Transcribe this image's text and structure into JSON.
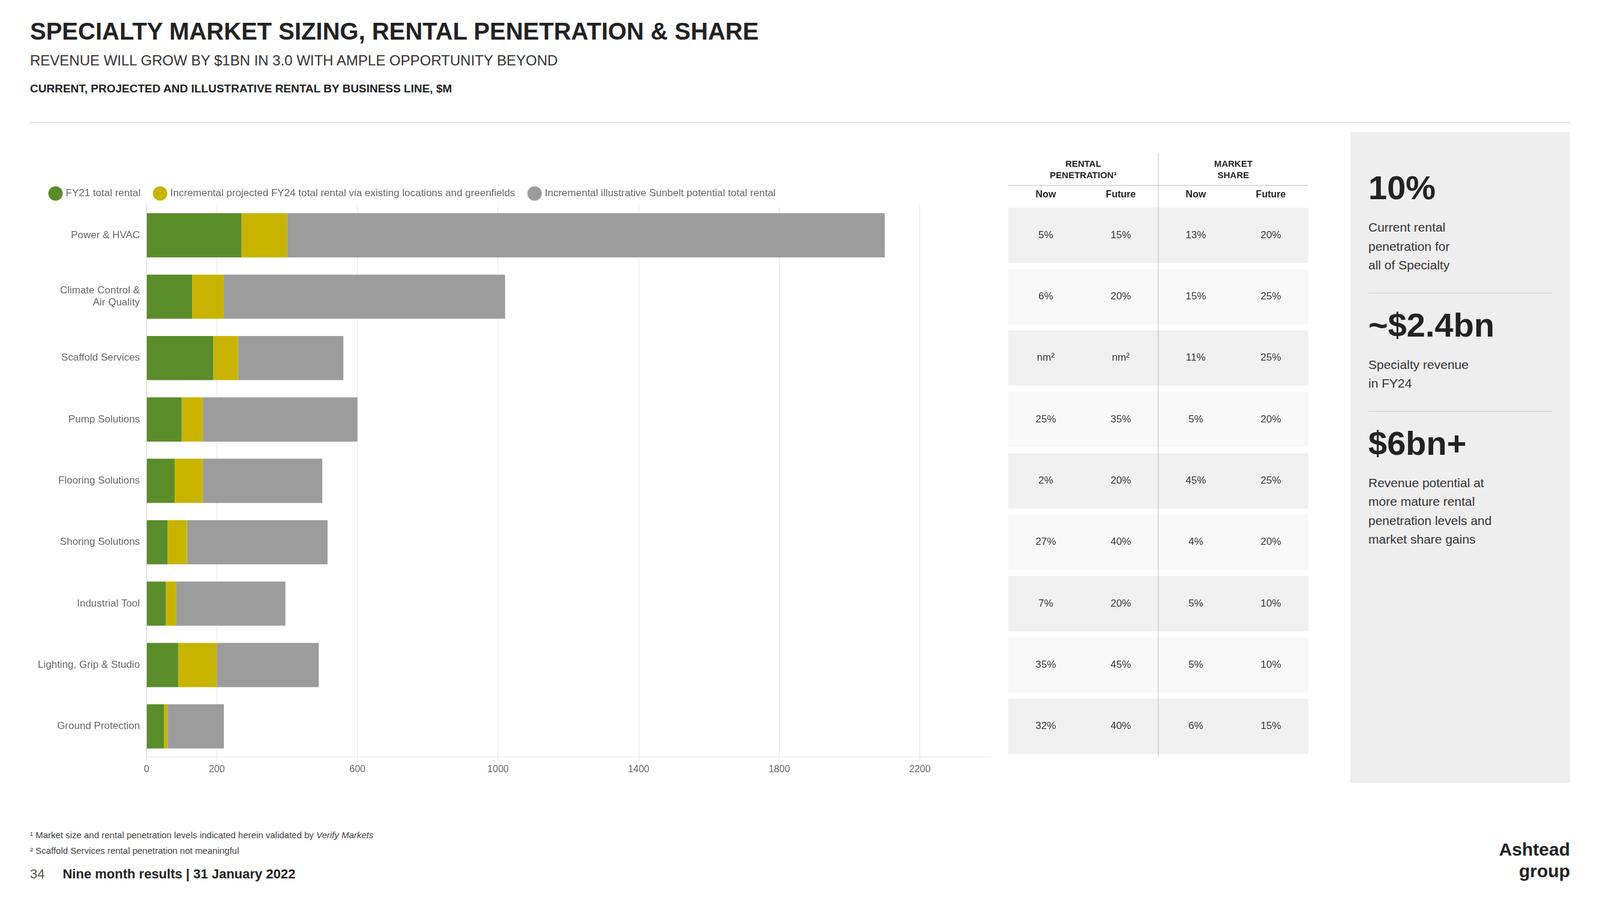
{
  "chart_data": {
    "type": "bar",
    "orientation": "horizontal",
    "stacked": true,
    "title": "SPECIALTY MARKET SIZING, RENTAL PENETRATION & SHARE",
    "subtitle": "REVENUE WILL GROW BY $1BN IN 3.0 WITH AMPLE OPPORTUNITY BEYOND",
    "chart_label": "CURRENT, PROJECTED AND ILLUSTRATIVE RENTAL BY BUSINESS LINE, $M",
    "categories": [
      "Power & HVAC",
      "Climate Control &\nAir Quality",
      "Scaffold Services",
      "Pump Solutions",
      "Flooring Solutions",
      "Shoring Solutions",
      "Industrial Tool",
      "Lighting, Grip & Studio",
      "Ground Protection"
    ],
    "series": [
      {
        "name": "FY21 total rental",
        "color": "#5b8c2a",
        "values": [
          270,
          130,
          190,
          100,
          80,
          60,
          55,
          90,
          50
        ]
      },
      {
        "name": "Incremental projected FY24 total rental via existing locations and greenfields",
        "color": "#c8b400",
        "values": [
          130,
          90,
          70,
          60,
          80,
          55,
          30,
          110,
          10
        ]
      },
      {
        "name": "Incremental illustrative Sunbelt potential total rental",
        "color": "#9c9c9c",
        "values": [
          1700,
          800,
          300,
          440,
          340,
          400,
          310,
          290,
          160
        ]
      }
    ],
    "xlim": [
      0,
      2400
    ],
    "xticks": [
      0,
      200,
      600,
      1000,
      1400,
      1800,
      2200
    ],
    "grid": true,
    "legend": "top",
    "table": {
      "groups": [
        "RENTAL\nPENETRATION¹",
        "MARKET\nSHARE"
      ],
      "columns": [
        "Now",
        "Future",
        "Now",
        "Future"
      ],
      "rows": [
        [
          "5%",
          "15%",
          "13%",
          "20%"
        ],
        [
          "6%",
          "20%",
          "15%",
          "25%"
        ],
        [
          "nm²",
          "nm²",
          "11%",
          "25%"
        ],
        [
          "25%",
          "35%",
          "5%",
          "20%"
        ],
        [
          "2%",
          "20%",
          "45%",
          "25%"
        ],
        [
          "27%",
          "40%",
          "4%",
          "20%"
        ],
        [
          "7%",
          "20%",
          "5%",
          "10%"
        ],
        [
          "35%",
          "45%",
          "5%",
          "10%"
        ],
        [
          "32%",
          "40%",
          "6%",
          "15%"
        ]
      ]
    },
    "stats": [
      {
        "value": "10%",
        "text": "Current rental\npenetration for\nall of Specialty"
      },
      {
        "value": "~$2.4bn",
        "text": "Specialty revenue\nin FY24"
      },
      {
        "value": "$6bn+",
        "text": "Revenue potential at\nmore mature rental\npenetration levels and\nmarket share gains"
      }
    ],
    "footnotes": [
      [
        "¹ Market size and rental penetration levels indicated herein validated by ",
        "Verify Markets"
      ],
      "² Scaffold Services rental penetration not meaningful"
    ],
    "footer": [
      "34",
      "Nine month results | 31 January 2022"
    ],
    "logo": [
      "Ashtead",
      "group"
    ]
  }
}
